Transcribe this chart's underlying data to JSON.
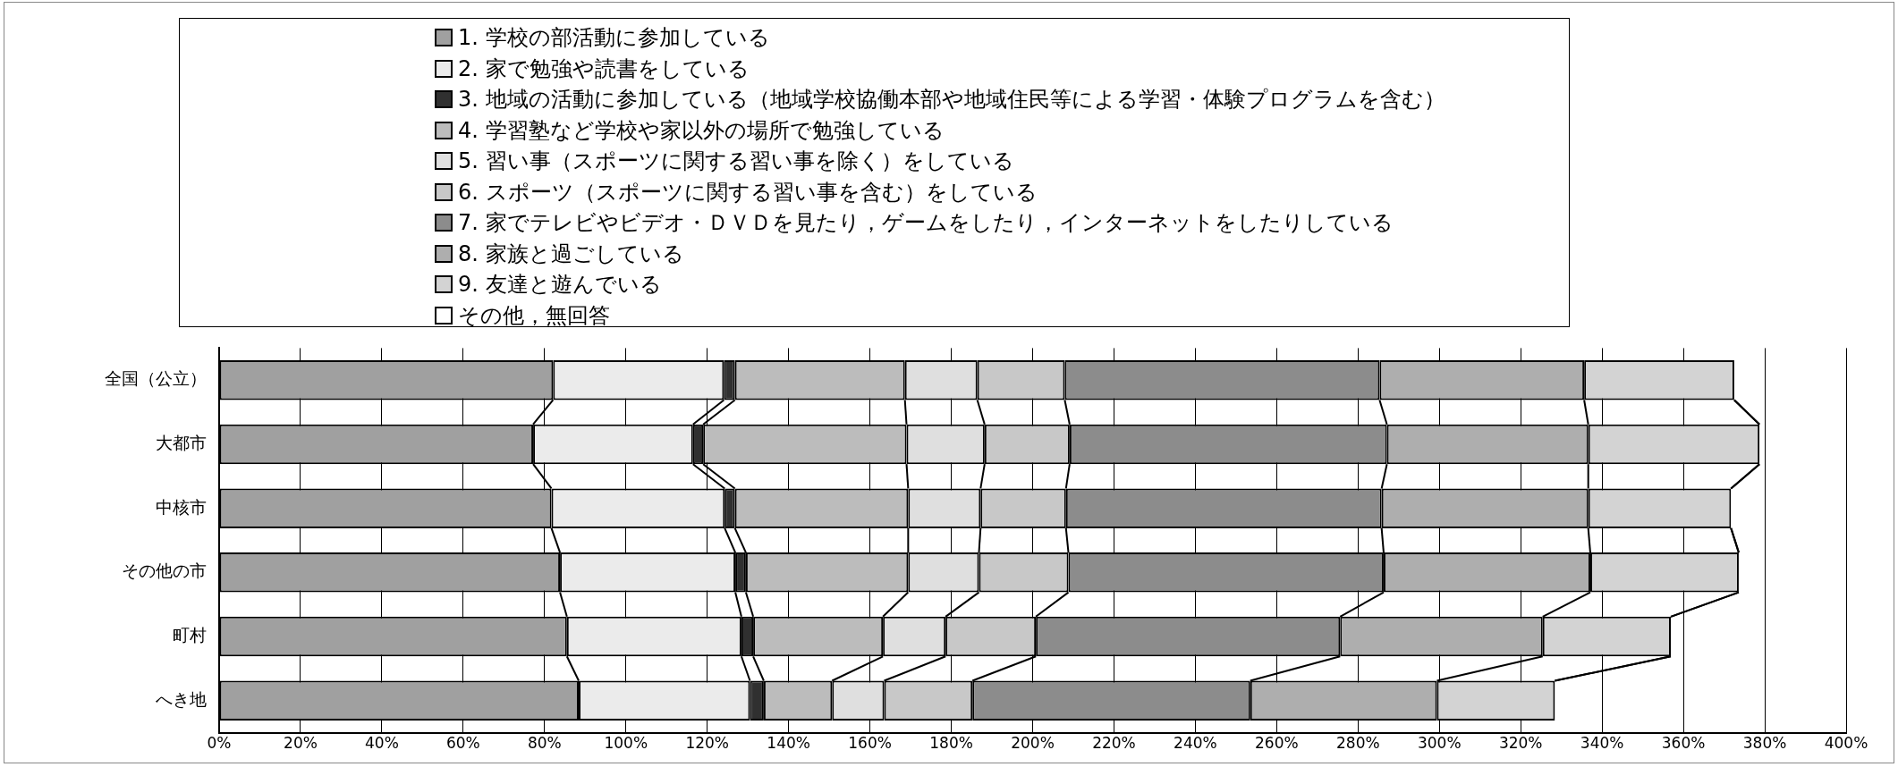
{
  "chart_data": {
    "type": "bar",
    "orientation": "horizontal",
    "stacked": true,
    "legend": "top",
    "grid": "x",
    "categories": [
      "全国（公立）",
      "大都市",
      "中核市",
      "その他の市",
      "町村",
      "へき地"
    ],
    "xlim": [
      0,
      400
    ],
    "xticks": [
      {
        "value": 0,
        "label": "0%"
      },
      {
        "value": 20,
        "label": "20%"
      },
      {
        "value": 40,
        "label": "40%"
      },
      {
        "value": 60,
        "label": "60%"
      },
      {
        "value": 80,
        "label": "80%"
      },
      {
        "value": 100,
        "label": "100%"
      },
      {
        "value": 120,
        "label": "120%"
      },
      {
        "value": 140,
        "label": "140%"
      },
      {
        "value": 160,
        "label": "160%"
      },
      {
        "value": 180,
        "label": "180%"
      },
      {
        "value": 200,
        "label": "200%"
      },
      {
        "value": 220,
        "label": "220%"
      },
      {
        "value": 240,
        "label": "240%"
      },
      {
        "value": 260,
        "label": "260%"
      },
      {
        "value": 280,
        "label": "280%"
      },
      {
        "value": 300,
        "label": "300%"
      },
      {
        "value": 320,
        "label": "320%"
      },
      {
        "value": 340,
        "label": "340%"
      },
      {
        "value": 360,
        "label": "360%"
      },
      {
        "value": 380,
        "label": "380%"
      },
      {
        "value": 400,
        "label": "400%"
      }
    ],
    "series": [
      {
        "name": "1. 学校の部活動に参加している",
        "color": "#a0a0a0",
        "values": [
          82.1,
          77.2,
          81.7,
          83.8,
          85.5,
          88.4
        ]
      },
      {
        "name": "2. 家で勉強や読書をしている",
        "color": "#ebebeb",
        "values": [
          42.0,
          39.3,
          42.6,
          43.1,
          42.9,
          42.1
        ]
      },
      {
        "name": "3. 地域の活動に参加している（地域学校協働本部や地域住民等による学習・体験プログラムを含む）",
        "color": "#303030",
        "values": [
          2.7,
          2.5,
          2.5,
          2.6,
          2.9,
          3.4
        ]
      },
      {
        "name": "4. 学習塾など学校や家以外の場所で勉強している",
        "color": "#bcbcbc",
        "values": [
          41.8,
          50.0,
          42.6,
          39.9,
          31.9,
          16.8
        ]
      },
      {
        "name": "5. 習い事（スポーツに関する習い事を除く）をしている",
        "color": "#dfdfdf",
        "values": [
          17.8,
          19.2,
          17.8,
          17.4,
          15.4,
          12.8
        ]
      },
      {
        "name": "6. スポーツ（スポーツに関する習い事を含む）をしている",
        "color": "#c8c8c8",
        "values": [
          21.5,
          20.9,
          21.0,
          22.0,
          22.2,
          21.7
        ]
      },
      {
        "name": "7. 家でテレビやビデオ・ＤＶＤを見たり，ゲームをしたり，インターネットをしたりしている",
        "color": "#8c8c8c",
        "values": [
          77.4,
          78.0,
          77.6,
          77.5,
          74.8,
          68.3
        ]
      },
      {
        "name": "8. 家族と過ごしている",
        "color": "#aeaeae",
        "values": [
          50.3,
          49.5,
          50.8,
          50.8,
          49.8,
          45.9
        ]
      },
      {
        "name": "9. 友達と遊んでいる",
        "color": "#d3d3d3",
        "values": [
          36.9,
          42.1,
          35.1,
          36.5,
          31.5,
          29.0
        ]
      },
      {
        "name": "その他，無回答",
        "color": "#ffffff",
        "values": [
          0,
          0,
          0,
          0,
          0,
          0
        ]
      }
    ]
  }
}
